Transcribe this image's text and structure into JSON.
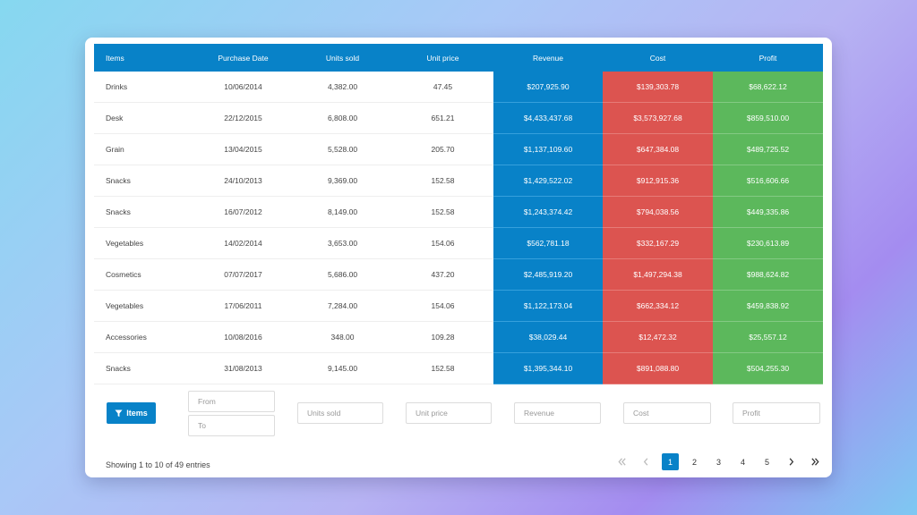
{
  "table": {
    "headers": [
      "Items",
      "Purchase Date",
      "Units sold",
      "Unit price",
      "Revenue",
      "Cost",
      "Profit"
    ],
    "rows": [
      [
        "Drinks",
        "10/06/2014",
        "4,382.00",
        "47.45",
        "$207,925.90",
        "$139,303.78",
        "$68,622.12"
      ],
      [
        "Desk",
        "22/12/2015",
        "6,808.00",
        "651.21",
        "$4,433,437.68",
        "$3,573,927.68",
        "$859,510.00"
      ],
      [
        "Grain",
        "13/04/2015",
        "5,528.00",
        "205.70",
        "$1,137,109.60",
        "$647,384.08",
        "$489,725.52"
      ],
      [
        "Snacks",
        "24/10/2013",
        "9,369.00",
        "152.58",
        "$1,429,522.02",
        "$912,915.36",
        "$516,606.66"
      ],
      [
        "Snacks",
        "16/07/2012",
        "8,149.00",
        "152.58",
        "$1,243,374.42",
        "$794,038.56",
        "$449,335.86"
      ],
      [
        "Vegetables",
        "14/02/2014",
        "3,653.00",
        "154.06",
        "$562,781.18",
        "$332,167.29",
        "$230,613.89"
      ],
      [
        "Cosmetics",
        "07/07/2017",
        "5,686.00",
        "437.20",
        "$2,485,919.20",
        "$1,497,294.38",
        "$988,624.82"
      ],
      [
        "Vegetables",
        "17/06/2011",
        "7,284.00",
        "154.06",
        "$1,122,173.04",
        "$662,334.12",
        "$459,838.92"
      ],
      [
        "Accessories",
        "10/08/2016",
        "348.00",
        "109.28",
        "$38,029.44",
        "$12,472.32",
        "$25,557.12"
      ],
      [
        "Snacks",
        "31/08/2013",
        "9,145.00",
        "152.58",
        "$1,395,344.10",
        "$891,088.80",
        "$504,255.30"
      ]
    ]
  },
  "filters": {
    "button_label": "Items",
    "from_placeholder": "From",
    "to_placeholder": "To",
    "units_placeholder": "Units sold",
    "price_placeholder": "Unit price",
    "revenue_placeholder": "Revenue",
    "cost_placeholder": "Cost",
    "profit_placeholder": "Profit"
  },
  "footer": {
    "entries_text": "Showing 1 to 10 of 49 entries"
  },
  "pagination": {
    "pages": [
      "1",
      "2",
      "3",
      "4",
      "5"
    ],
    "active_page": "1",
    "icons": {
      "first": "double-chevron-left-icon",
      "prev": "chevron-left-icon",
      "next": "chevron-right-icon",
      "last": "double-chevron-right-icon"
    }
  },
  "colors": {
    "header": "#0882c8",
    "revenue": "#0882c8",
    "cost": "#dc5450",
    "profit": "#5cb85c"
  }
}
